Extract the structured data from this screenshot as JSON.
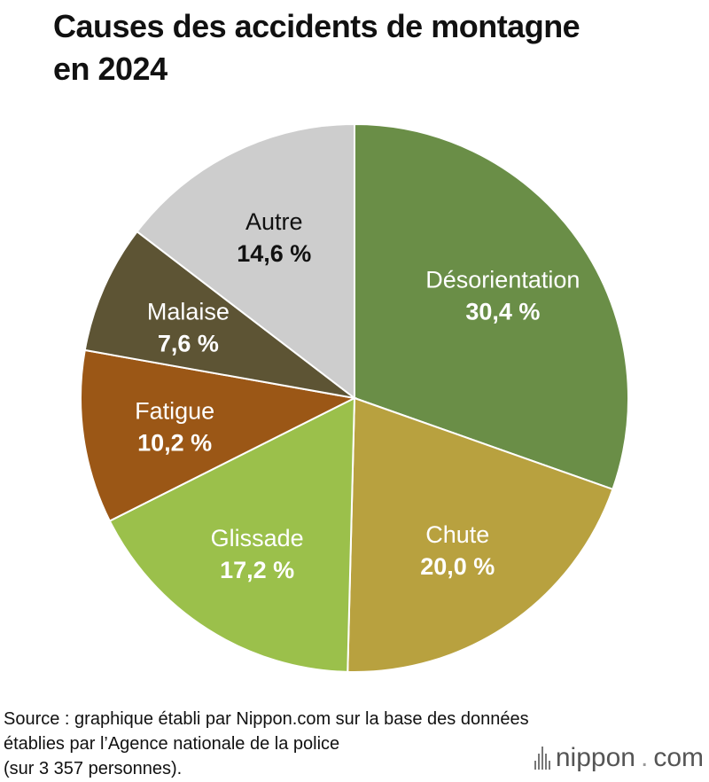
{
  "title_lines": [
    "Causes des accidents de montagne",
    "en 2024"
  ],
  "chart_data": {
    "type": "pie",
    "title": "Causes des accidents de montagne en 2024",
    "start_angle_deg": 0,
    "direction": "clockwise",
    "slices": [
      {
        "label": "Désorientation",
        "value": 30.4,
        "value_text": "30,4 %",
        "color": "#6a8e47",
        "text_color": "#ffffff"
      },
      {
        "label": "Chute",
        "value": 20.0,
        "value_text": "20,0 %",
        "color": "#b8a13f",
        "text_color": "#ffffff"
      },
      {
        "label": "Glissade",
        "value": 17.2,
        "value_text": "17,2 %",
        "color": "#9bc04b",
        "text_color": "#ffffff"
      },
      {
        "label": "Fatigue",
        "value": 10.2,
        "value_text": "10,2 %",
        "color": "#9b5716",
        "text_color": "#ffffff"
      },
      {
        "label": "Malaise",
        "value": 7.6,
        "value_text": "7,6 %",
        "color": "#5d5434",
        "text_color": "#ffffff"
      },
      {
        "label": "Autre",
        "value": 14.6,
        "value_text": "14,6 %",
        "color": "#cdcdcd",
        "text_color": "#111111"
      }
    ]
  },
  "source_lines": [
    "Source : graphique établi par Nippon.com sur la base des données",
    "établies par l’Agence nationale de la police",
    "(sur 3 357 personnes)."
  ],
  "brand": {
    "name": "nippon",
    "dot": ".",
    "suffix": "com"
  }
}
